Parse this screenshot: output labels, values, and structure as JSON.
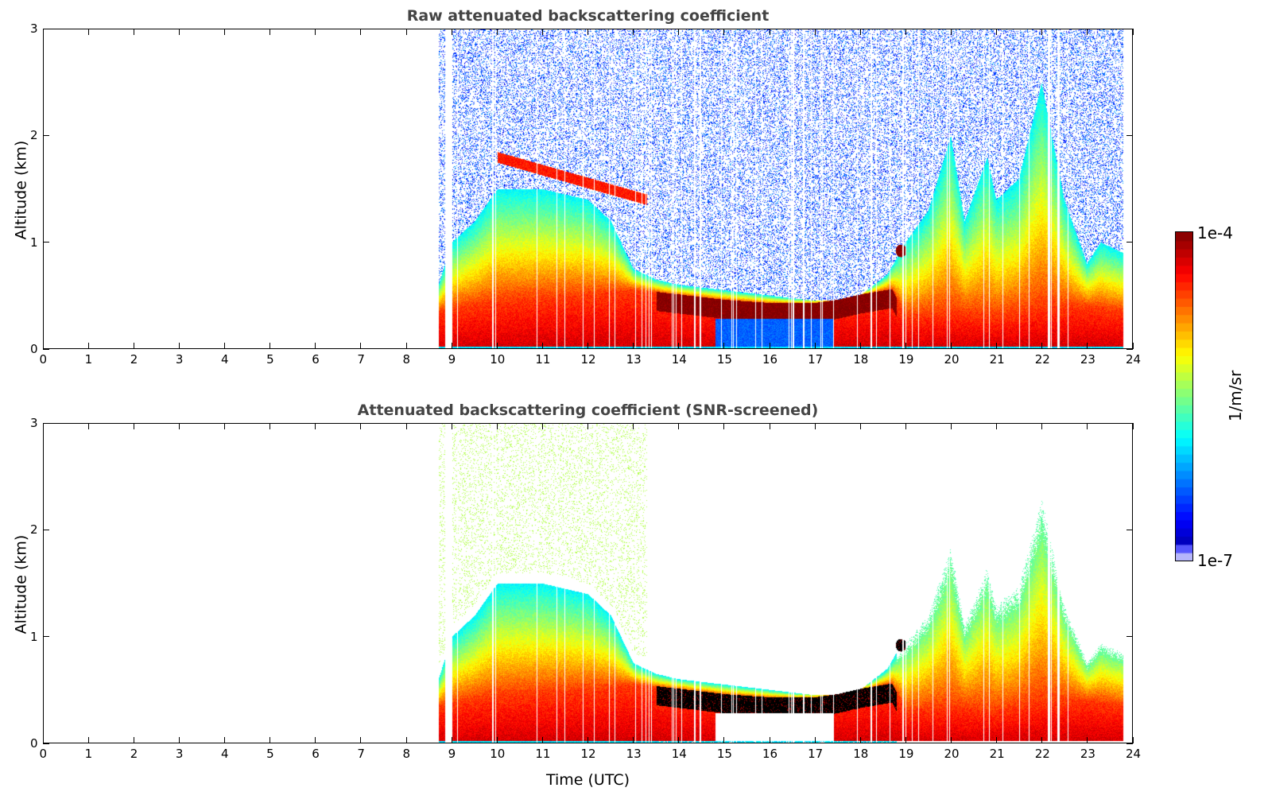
{
  "chart_data": [
    {
      "type": "heatmap",
      "title": "Raw attenuated backscattering coefficient",
      "xlabel": "",
      "ylabel": "Altitude (km)",
      "xlim": [
        0,
        24
      ],
      "ylim": [
        0,
        3
      ],
      "xticks": [
        "0",
        "1",
        "2",
        "3",
        "4",
        "5",
        "6",
        "7",
        "8",
        "9",
        "10",
        "11",
        "12",
        "13",
        "14",
        "15",
        "16",
        "17",
        "18",
        "19",
        "20",
        "21",
        "22",
        "23",
        "24"
      ],
      "yticks": [
        "0",
        "1",
        "2",
        "3"
      ],
      "screened": false
    },
    {
      "type": "heatmap",
      "title": "Attenuated backscattering coefficient (SNR-screened)",
      "xlabel": "Time (UTC)",
      "ylabel": "Altitude (km)",
      "xlim": [
        0,
        24
      ],
      "ylim": [
        0,
        3
      ],
      "xticks": [
        "0",
        "1",
        "2",
        "3",
        "4",
        "5",
        "6",
        "7",
        "8",
        "9",
        "10",
        "11",
        "12",
        "13",
        "14",
        "15",
        "16",
        "17",
        "18",
        "19",
        "20",
        "21",
        "22",
        "23",
        "24"
      ],
      "yticks": [
        "0",
        "1",
        "2",
        "3"
      ],
      "screened": true
    }
  ],
  "field": {
    "data_start_utc": 8.7,
    "data_end_utc": 23.8,
    "gap_utc": [
      8.85,
      9.0
    ],
    "aerosol_top_km": {
      "t": [
        8.7,
        9,
        9.5,
        10,
        11,
        12,
        12.5,
        13,
        13.5,
        14,
        15,
        16,
        17,
        17.5,
        18,
        18.6,
        19,
        19.5,
        20,
        20.3,
        20.8,
        21,
        21.5,
        22,
        22.5,
        23,
        23.3,
        23.8
      ],
      "h": [
        0.6,
        1.0,
        1.2,
        1.5,
        1.5,
        1.4,
        1.2,
        0.75,
        0.65,
        0.6,
        0.55,
        0.5,
        0.45,
        0.45,
        0.5,
        0.7,
        1.0,
        1.3,
        2.0,
        1.2,
        1.8,
        1.4,
        1.6,
        2.5,
        1.4,
        0.8,
        1.0,
        0.9
      ]
    },
    "dense_layer_top_km": {
      "t": [
        8.7,
        10,
        12,
        13,
        14,
        15,
        16,
        17,
        17.5,
        18,
        18.7,
        19,
        20,
        21,
        22,
        23,
        23.8
      ],
      "h": [
        0.35,
        0.45,
        0.5,
        0.55,
        0.5,
        0.45,
        0.42,
        0.42,
        0.45,
        0.5,
        0.55,
        0.3,
        0.35,
        0.3,
        0.4,
        0.4,
        0.35
      ]
    },
    "elevated_layer": {
      "t": [
        10,
        13.3
      ],
      "h_km": [
        1.8,
        1.4
      ]
    },
    "cloud": {
      "t": 18.9,
      "h_km": 0.92
    },
    "clear_low_region": {
      "t": [
        14.8,
        17.4
      ],
      "h_km": [
        0,
        0.28
      ]
    },
    "colorbar": {
      "min_label": "1e-7",
      "max_label": "1e-4",
      "label": "1/m/sr",
      "log_min": -7,
      "log_max": -4
    }
  }
}
